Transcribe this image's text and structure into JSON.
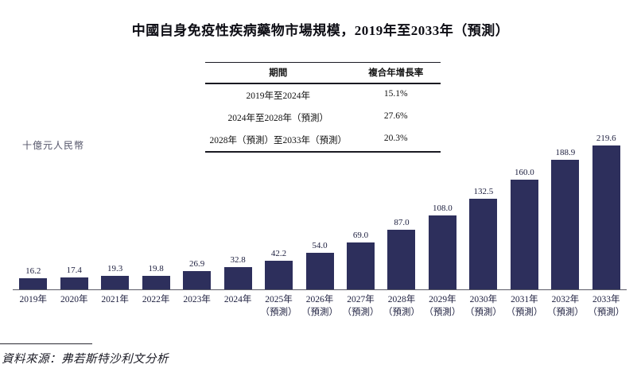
{
  "title": "中國自身免疫性疾病藥物市場規模，2019年至2033年（預測）",
  "cagr_table": {
    "headers": [
      "期間",
      "複合年增長率"
    ],
    "rows": [
      {
        "period": "2019年至2024年",
        "cagr": "15.1%"
      },
      {
        "period": "2024年至2028年（預測）",
        "cagr": "27.6%"
      },
      {
        "period": "2028年（預測）至2033年（預測）",
        "cagr": "20.3%"
      }
    ]
  },
  "y_axis_unit": "十億元人民幣",
  "source": "資料來源：弗若斯特沙利文分析",
  "colors": {
    "bar": "#2d2f5c",
    "axis": "#5a5a66",
    "text": "#1c1e3e"
  },
  "chart_data": {
    "type": "bar",
    "title": "中國自身免疫性疾病藥物市場規模，2019年至2033年（預測）",
    "xlabel": "",
    "ylabel": "十億元人民幣",
    "ylim": [
      0,
      225
    ],
    "grid": false,
    "legend": "none",
    "categories": [
      "2019年",
      "2020年",
      "2021年",
      "2022年",
      "2023年",
      "2024年",
      "2025年",
      "2026年",
      "2027年",
      "2028年",
      "2029年",
      "2030年",
      "2031年",
      "2032年",
      "2033年"
    ],
    "forecast_suffix": "（預測）",
    "forecast_from_index": 6,
    "values": [
      16.2,
      17.4,
      19.3,
      19.8,
      26.9,
      32.8,
      42.2,
      54.0,
      69.0,
      87.0,
      108.0,
      132.5,
      160.0,
      188.9,
      219.6
    ],
    "value_labels": [
      "16.2",
      "17.4",
      "19.3",
      "19.8",
      "26.9",
      "32.8",
      "42.2",
      "54.0",
      "69.0",
      "87.0",
      "108.0",
      "132.5",
      "160.0",
      "188.9",
      "219.6"
    ]
  }
}
